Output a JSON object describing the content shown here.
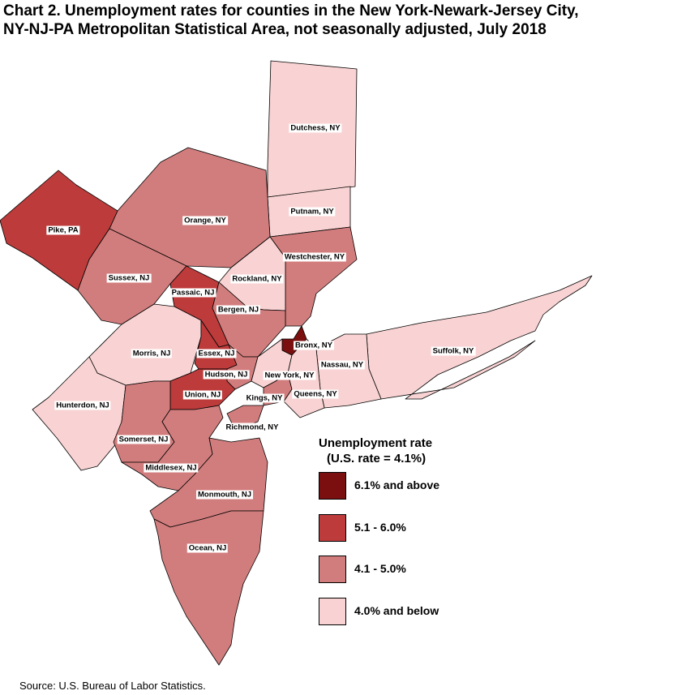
{
  "title_line1": "Chart 2. Unemployment rates for counties in the New York-Newark-Jersey City,",
  "title_line2": "NY-NJ-PA Metropolitan Statistical Area, not seasonally adjusted, July 2018",
  "legend": {
    "title": "Unemployment rate",
    "subtitle": "(U.S. rate = 4.1%)",
    "items": [
      {
        "label": "6.1% and above",
        "color": "#7b0e0e"
      },
      {
        "label": "5.1 - 6.0%",
        "color": "#bd3b3b"
      },
      {
        "label": "4.1 - 5.0%",
        "color": "#d27d7d"
      },
      {
        "label": "4.0% and below",
        "color": "#f9d3d3"
      }
    ]
  },
  "counties": [
    {
      "name": "Dutchess, NY",
      "category": 3
    },
    {
      "name": "Putnam, NY",
      "category": 3
    },
    {
      "name": "Orange, NY",
      "category": 2
    },
    {
      "name": "Pike, PA",
      "category": 1
    },
    {
      "name": "Westchester, NY",
      "category": 2
    },
    {
      "name": "Rockland, NY",
      "category": 3
    },
    {
      "name": "Sussex, NJ",
      "category": 2
    },
    {
      "name": "Passaic, NJ",
      "category": 1
    },
    {
      "name": "Bergen, NJ",
      "category": 2
    },
    {
      "name": "Bronx, NY",
      "category": 0
    },
    {
      "name": "Suffolk, NY",
      "category": 3
    },
    {
      "name": "Morris, NJ",
      "category": 3
    },
    {
      "name": "Essex, NJ",
      "category": 1
    },
    {
      "name": "Nassau, NY",
      "category": 3
    },
    {
      "name": "Hudson, NJ",
      "category": 2
    },
    {
      "name": "New York, NY",
      "category": 3
    },
    {
      "name": "Union, NJ",
      "category": 1
    },
    {
      "name": "Kings, NY",
      "category": 2
    },
    {
      "name": "Queens, NY",
      "category": 3
    },
    {
      "name": "Hunterdon, NJ",
      "category": 3
    },
    {
      "name": "Richmond, NY",
      "category": 2
    },
    {
      "name": "Somerset, NJ",
      "category": 2
    },
    {
      "name": "Middlesex, NJ",
      "category": 2
    },
    {
      "name": "Monmouth, NJ",
      "category": 2
    },
    {
      "name": "Ocean, NJ",
      "category": 2
    }
  ],
  "source": "Source: U.S. Bureau of Labor Statistics."
}
